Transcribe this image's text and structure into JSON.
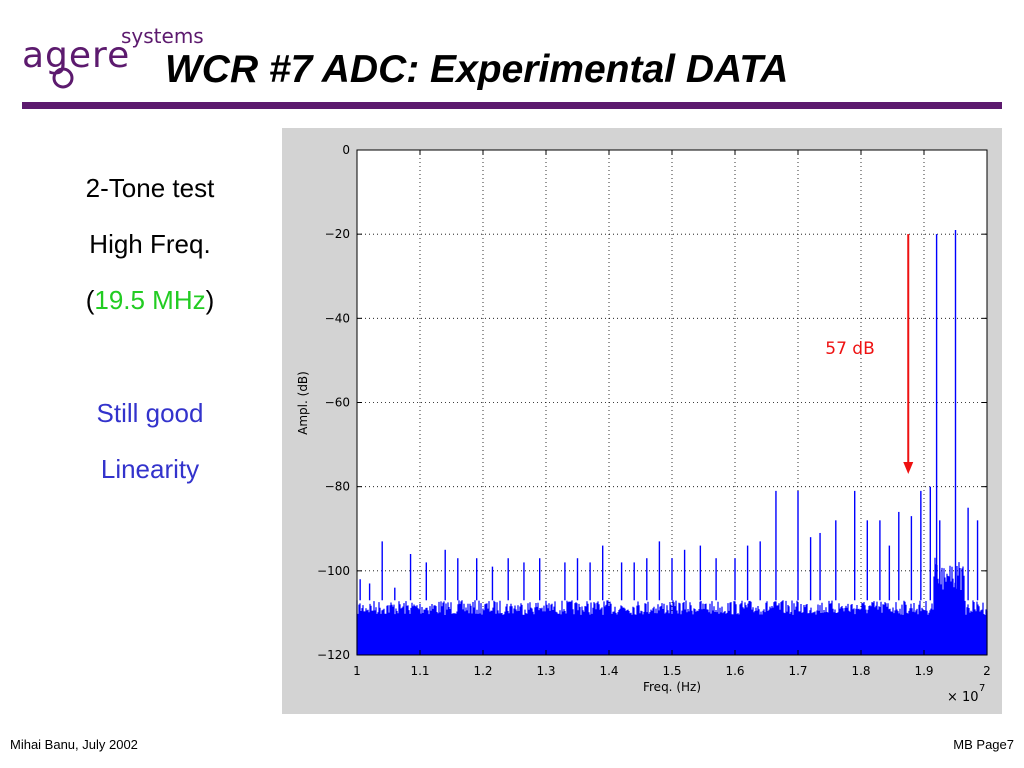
{
  "header": {
    "title": "WCR #7   ADC: Experimental DATA",
    "logo_word": "agere",
    "logo_sub": "systems"
  },
  "left_panel": {
    "line1": "2-Tone test",
    "line2": "High Freq.",
    "line3_open": "(",
    "line3_value": "19.5 MHz",
    "line3_close": ")",
    "line4": "Still good",
    "line5": "Linearity"
  },
  "footer": {
    "left": "Mihai Banu, July 2002",
    "right": "MB Page7"
  },
  "colors": {
    "accent_purple": "#5c1a6e",
    "highlight_green": "#22cc22",
    "text_blue": "#3333cc",
    "spectrum_blue": "#0000ff",
    "annotation_red": "#ee1111"
  },
  "chart_data": {
    "type": "line",
    "title": "",
    "xlabel": "Freq. (Hz)",
    "ylabel": "Ampl. (dB)",
    "x_multiplier_label": "× 10",
    "x_multiplier_exp": "7",
    "xlim": [
      1,
      2
    ],
    "ylim": [
      -120,
      0
    ],
    "xticks": [
      1,
      1.1,
      1.2,
      1.3,
      1.4,
      1.5,
      1.6,
      1.7,
      1.8,
      1.9,
      2
    ],
    "xtick_labels": [
      "1",
      "1.1",
      "1.2",
      "1.3",
      "1.4",
      "1.5",
      "1.6",
      "1.7",
      "1.8",
      "1.9",
      "2"
    ],
    "yticks": [
      0,
      -20,
      -40,
      -60,
      -80,
      -100,
      -120
    ],
    "ytick_labels": [
      "0",
      "−20",
      "−40",
      "−60",
      "−80",
      "−100",
      "−120"
    ],
    "grid": true,
    "noise_floor_db": [
      -120,
      -107
    ],
    "tones": [
      {
        "x": 1.92,
        "y": -20
      },
      {
        "x": 1.95,
        "y": -19
      }
    ],
    "spurs": [
      {
        "x": 1.005,
        "y": -102
      },
      {
        "x": 1.02,
        "y": -103
      },
      {
        "x": 1.04,
        "y": -93
      },
      {
        "x": 1.06,
        "y": -104
      },
      {
        "x": 1.085,
        "y": -96
      },
      {
        "x": 1.11,
        "y": -98
      },
      {
        "x": 1.14,
        "y": -95
      },
      {
        "x": 1.16,
        "y": -97
      },
      {
        "x": 1.19,
        "y": -97
      },
      {
        "x": 1.215,
        "y": -99
      },
      {
        "x": 1.24,
        "y": -97
      },
      {
        "x": 1.265,
        "y": -98
      },
      {
        "x": 1.29,
        "y": -97
      },
      {
        "x": 1.33,
        "y": -98
      },
      {
        "x": 1.35,
        "y": -97
      },
      {
        "x": 1.37,
        "y": -98
      },
      {
        "x": 1.39,
        "y": -94
      },
      {
        "x": 1.42,
        "y": -98
      },
      {
        "x": 1.44,
        "y": -98
      },
      {
        "x": 1.46,
        "y": -97
      },
      {
        "x": 1.48,
        "y": -93
      },
      {
        "x": 1.5,
        "y": -97
      },
      {
        "x": 1.52,
        "y": -95
      },
      {
        "x": 1.545,
        "y": -94
      },
      {
        "x": 1.57,
        "y": -97
      },
      {
        "x": 1.6,
        "y": -97
      },
      {
        "x": 1.62,
        "y": -94
      },
      {
        "x": 1.64,
        "y": -93
      },
      {
        "x": 1.665,
        "y": -81
      },
      {
        "x": 1.7,
        "y": -81
      },
      {
        "x": 1.72,
        "y": -92
      },
      {
        "x": 1.735,
        "y": -91
      },
      {
        "x": 1.76,
        "y": -88
      },
      {
        "x": 1.79,
        "y": -81
      },
      {
        "x": 1.81,
        "y": -88
      },
      {
        "x": 1.83,
        "y": -88
      },
      {
        "x": 1.845,
        "y": -94
      },
      {
        "x": 1.86,
        "y": -86
      },
      {
        "x": 1.88,
        "y": -87
      },
      {
        "x": 1.895,
        "y": -81
      },
      {
        "x": 1.91,
        "y": -80
      },
      {
        "x": 1.925,
        "y": -88
      },
      {
        "x": 1.97,
        "y": -85
      },
      {
        "x": 1.985,
        "y": -88
      }
    ],
    "annotation": {
      "label": "57 dB",
      "x": 1.875,
      "y_top": -20,
      "y_bottom": -77
    }
  }
}
